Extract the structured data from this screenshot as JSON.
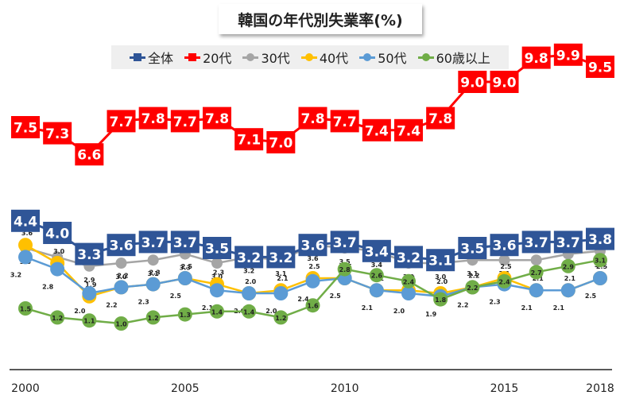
{
  "chart_data": {
    "type": "line",
    "title": "韓国の年代別失業率(%)",
    "x": [
      2000,
      2001,
      2002,
      2003,
      2004,
      2005,
      2006,
      2007,
      2008,
      2009,
      2010,
      2011,
      2012,
      2013,
      2014,
      2015,
      2016,
      2017,
      2018
    ],
    "x_tick_labels": [
      "2000",
      "2005",
      "2010",
      "2015",
      "2018"
    ],
    "x_tick_years": [
      2000,
      2005,
      2010,
      2015,
      2018
    ],
    "ylim": [
      0,
      10.5
    ],
    "legend_position": "top",
    "grid": false,
    "series": [
      {
        "name": "全体",
        "color": "#2f5597",
        "marker": "square",
        "values": [
          4.4,
          4.0,
          3.3,
          3.6,
          3.7,
          3.7,
          3.5,
          3.2,
          3.2,
          3.6,
          3.7,
          3.4,
          3.2,
          3.1,
          3.5,
          3.6,
          3.7,
          3.7,
          3.8
        ]
      },
      {
        "name": "20代",
        "color": "#ff0000",
        "marker": "square",
        "values": [
          7.5,
          7.3,
          6.6,
          7.7,
          7.8,
          7.7,
          7.8,
          7.1,
          7.0,
          7.8,
          7.7,
          7.4,
          7.4,
          7.8,
          9.0,
          9.0,
          9.8,
          9.9,
          9.5
        ]
      },
      {
        "name": "30代",
        "color": "#a5a5a5",
        "marker": "circle",
        "values": [
          3.5,
          3.2,
          2.9,
          3.0,
          3.1,
          3.3,
          3.0,
          3.2,
          3.1,
          3.6,
          3.5,
          3.4,
          3.0,
          3.0,
          3.1,
          3.1,
          3.1,
          3.3,
          3.4
        ]
      },
      {
        "name": "40代",
        "color": "#ffc000",
        "marker": "circle",
        "values": [
          3.6,
          3.0,
          1.9,
          2.2,
          2.3,
          2.5,
          2.3,
          2.0,
          2.1,
          2.5,
          2.5,
          2.1,
          2.1,
          2.0,
          2.2,
          2.5,
          2.1,
          2.1,
          2.5
        ]
      },
      {
        "name": "50代",
        "color": "#5b9bd5",
        "marker": "circle",
        "values": [
          3.2,
          2.8,
          2.0,
          2.2,
          2.3,
          2.5,
          2.1,
          2.0,
          2.0,
          2.4,
          2.5,
          2.1,
          2.0,
          1.9,
          2.2,
          2.3,
          2.1,
          2.1,
          2.5
        ]
      },
      {
        "name": "60歳以上",
        "color": "#70ad47",
        "marker": "circle",
        "values": [
          1.5,
          1.2,
          1.1,
          1.0,
          1.2,
          1.3,
          1.4,
          1.4,
          1.2,
          1.6,
          2.8,
          2.6,
          2.4,
          1.8,
          2.2,
          2.4,
          2.7,
          2.9,
          3.1
        ]
      }
    ],
    "annotations": {
      "total_labels": [
        "4.4",
        "4.0",
        "3.3",
        "3.6",
        "3.7",
        "3.7",
        "3.5",
        "3.2",
        "3.2",
        "3.6",
        "3.7",
        "3.4",
        "3.2",
        "3.1",
        "3.5",
        "3.6",
        "3.7",
        "3.7",
        "3.8"
      ],
      "twenties_labels": [
        "7.5",
        "7.3",
        "6.6",
        "7.7",
        "7.8",
        "7.7",
        "7.8",
        "7.1",
        "7.0",
        "7.8",
        "7.7",
        "7.4",
        "7.4",
        "7.8",
        "9.0",
        "9.0",
        "9.8",
        "9.9",
        "9.5"
      ],
      "thirties_labels": [
        "3.5",
        "3.2",
        "2.9",
        "3.0",
        "3.1",
        "3.3",
        "3.0",
        "3.2",
        "3.1",
        "3.6",
        "3.5",
        "3.4",
        "3.0",
        "3.0",
        "3.1",
        "3.1",
        "3.1",
        "3.3",
        "3.4"
      ],
      "forties_labels": [
        "3.6",
        "3.0",
        "1.9",
        "2.2",
        "2.3",
        "2.5",
        "2.3",
        "2.0",
        "2.1",
        "2.5",
        "2.5",
        "2.1",
        "2.1",
        "2.0",
        "2.2",
        "2.5",
        "2.1",
        "2.1",
        "2.5"
      ],
      "fifties_labels": [
        "3.2",
        "2.8",
        "2.0",
        "2.2",
        "2.3",
        "2.5",
        "2.1",
        "2.0",
        "2.0",
        "2.4",
        "2.5",
        "2.1",
        "2.0",
        "1.9",
        "2.2",
        "2.3",
        "2.1",
        "2.1",
        "2.5"
      ],
      "sixties_labels": [
        "1.5",
        "1.2",
        "1.1",
        "1.0",
        "1.2",
        "1.3",
        "1.4",
        "1.4",
        "1.2",
        "1.6",
        "2.8",
        "2.6",
        "2.4",
        "1.8",
        "2.2",
        "2.4",
        "2.7",
        "2.9",
        "3.1"
      ]
    }
  }
}
